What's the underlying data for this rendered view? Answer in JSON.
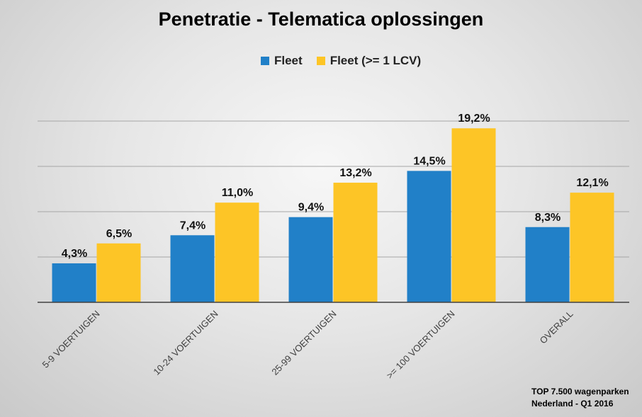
{
  "chart_data": {
    "type": "bar",
    "title": "Penetratie - Telematica oplossingen",
    "categories": [
      "5-9 VOERTUIGEN",
      "10-24 VOERTUIGEN",
      "25-99 VOERTUIGEN",
      ">= 100 VOERTUIGEN",
      "OVERALL"
    ],
    "series": [
      {
        "name": "Fleet",
        "color": "#2180c8",
        "values": [
          4.3,
          7.4,
          9.4,
          14.5,
          8.3
        ],
        "labels": [
          "4,3%",
          "7,4%",
          "9,4%",
          "14,5%",
          "8,3%"
        ]
      },
      {
        "name": "Fleet (>= 1 LCV)",
        "color": "#fdc526",
        "values": [
          6.5,
          11.0,
          13.2,
          19.2,
          12.1
        ],
        "labels": [
          "6,5%",
          "11,0%",
          "13,2%",
          "19,2%",
          "12,1%"
        ]
      }
    ],
    "ylim": [
      0,
      20
    ],
    "grid_step": 5,
    "grid": true,
    "legend_position": "top-center",
    "xlabel": "",
    "ylabel": ""
  },
  "footnote": [
    "TOP 7.500 wagenparken",
    "Nederland - Q1 2016"
  ]
}
